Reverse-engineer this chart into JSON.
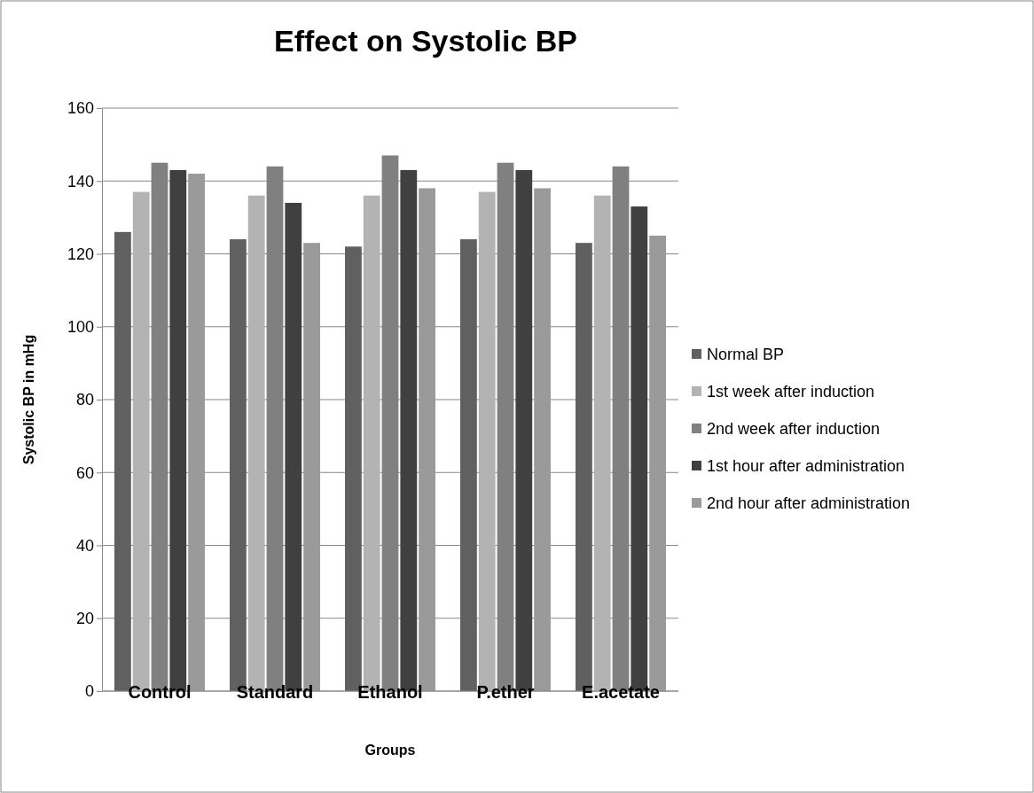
{
  "chart_data": {
    "type": "bar",
    "title": "Effect on Systolic BP",
    "xlabel": "Groups",
    "ylabel": "Systolic BP in mHg",
    "categories": [
      "Control",
      "Standard",
      "Ethanol",
      "P.ether",
      "E.acetate"
    ],
    "series": [
      {
        "name": "Normal BP",
        "color": "#606060",
        "values": [
          126,
          124,
          122,
          124,
          123
        ]
      },
      {
        "name": "1st week after induction",
        "color": "#b3b3b3",
        "values": [
          137,
          136,
          136,
          137,
          136
        ]
      },
      {
        "name": "2nd week after induction",
        "color": "#808080",
        "values": [
          145,
          144,
          147,
          145,
          144
        ]
      },
      {
        "name": "1st hour after administration",
        "color": "#404040",
        "values": [
          143,
          134,
          143,
          143,
          133
        ]
      },
      {
        "name": "2nd hour after administration",
        "color": "#9a9a9a",
        "values": [
          142,
          123,
          138,
          138,
          125
        ]
      }
    ],
    "ylim": [
      0,
      160
    ],
    "yticks": [
      0,
      20,
      40,
      60,
      80,
      100,
      120,
      140,
      160
    ],
    "grid": "y",
    "legend": "right"
  }
}
